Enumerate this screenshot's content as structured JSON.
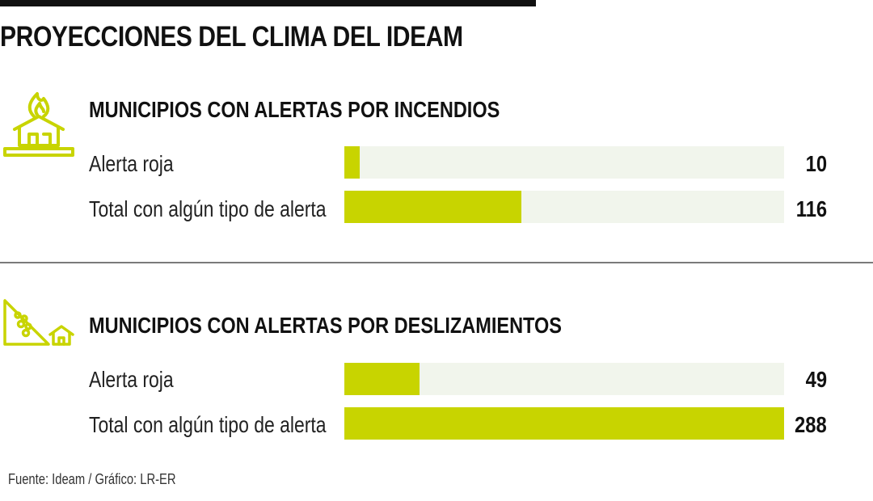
{
  "title": "PROYECCIONES DEL CLIMA DEL IDEAM",
  "source": "Fuente: Ideam / Gráfico: LR-ER",
  "colors": {
    "bar": "#c8d400",
    "track": "#f1f5ec",
    "icon": "#c8d400"
  },
  "icons": [
    "fire-house-icon",
    "landslide-icon"
  ],
  "chart_data": [
    {
      "type": "bar",
      "orientation": "horizontal",
      "title": "MUNICIPIOS CON ALERTAS POR INCENDIOS",
      "categories": [
        "Alerta roja",
        "Total con algún tipo de alerta"
      ],
      "values": [
        10,
        116
      ],
      "value_labels": [
        "10",
        "116"
      ],
      "xlim": [
        0,
        288
      ]
    },
    {
      "type": "bar",
      "orientation": "horizontal",
      "title": "MUNICIPIOS CON ALERTAS POR DESLIZAMIENTOS",
      "categories": [
        "Alerta roja",
        "Total con algún tipo de alerta"
      ],
      "values": [
        49,
        288
      ],
      "value_labels": [
        "49",
        "288"
      ],
      "xlim": [
        0,
        288
      ]
    }
  ]
}
